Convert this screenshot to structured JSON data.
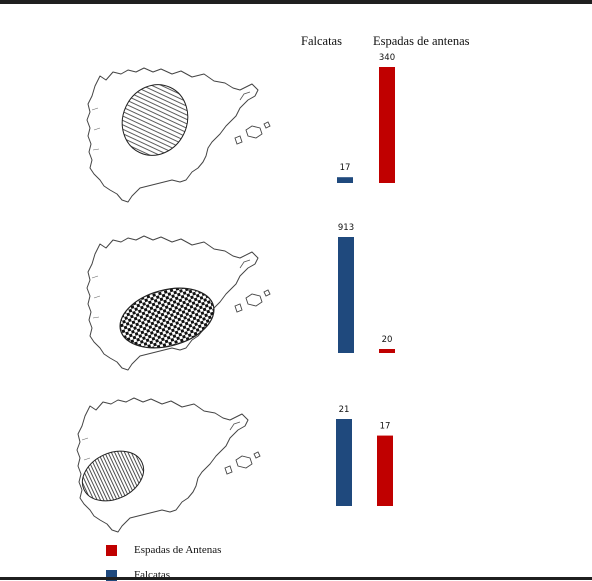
{
  "headers": {
    "falcatas": "Falcatas",
    "espadas": "Espadas de antenas"
  },
  "legend": [
    {
      "label": "Espadas de Antenas",
      "color": "#c00000"
    },
    {
      "label": "Falcatas",
      "color": "#1f497d"
    }
  ],
  "colors": {
    "falcatas": "#1f497d",
    "espadas": "#c00000"
  },
  "icons": [
    "iberian-peninsula-map",
    "striped-region-ellipse"
  ],
  "chart_data": [
    {
      "type": "bar",
      "region_pattern": "horizontal-lines",
      "series": [
        {
          "name": "Falcatas",
          "values": [
            17
          ]
        },
        {
          "name": "Espadas de antenas",
          "values": [
            340
          ]
        }
      ]
    },
    {
      "type": "bar",
      "region_pattern": "checkerboard",
      "series": [
        {
          "name": "Falcatas",
          "values": [
            913
          ]
        },
        {
          "name": "Espadas de antenas",
          "values": [
            20
          ]
        }
      ]
    },
    {
      "type": "bar",
      "region_pattern": "vertical-lines",
      "series": [
        {
          "name": "Falcatas",
          "values": [
            21
          ]
        },
        {
          "name": "Espadas de antenas",
          "values": [
            17
          ]
        }
      ]
    }
  ]
}
